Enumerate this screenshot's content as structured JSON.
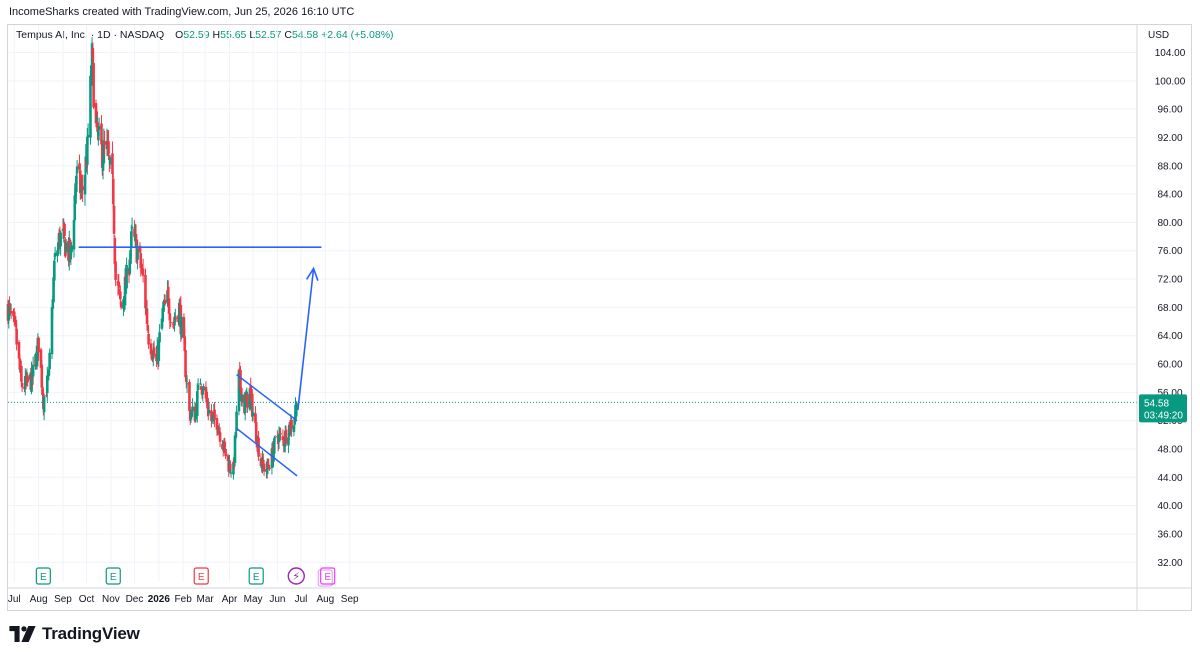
{
  "caption": "IncomeSharks created with TradingView.com, Jun 25, 2026 16:10 UTC",
  "legend": {
    "symbol": "Tempus AI, Inc. · 1D · NASDAQ",
    "open_label": "O",
    "open": "52.59",
    "high_label": "H",
    "high": "55.65",
    "low_label": "L",
    "low": "52.57",
    "close_label": "C",
    "close": "54.58",
    "change": "+2.64 (+5.08%)"
  },
  "currency": "USD",
  "last_price": {
    "price": "54.58",
    "countdown": "03:49:20"
  },
  "brand": {
    "name": "TradingView"
  },
  "colors": {
    "up": "#089981",
    "down": "#f23645",
    "drawing": "#2962ff",
    "price_line": "#089981"
  },
  "chart_data": {
    "type": "candlestick",
    "interval": "1D",
    "x_axis": {
      "ticks": [
        {
          "label": "Jul",
          "date": "2025-07-01"
        },
        {
          "label": "Aug",
          "date": "2025-08-01"
        },
        {
          "label": "Sep",
          "date": "2025-09-01"
        },
        {
          "label": "Oct",
          "date": "2025-10-01"
        },
        {
          "label": "Nov",
          "date": "2025-11-01"
        },
        {
          "label": "Dec",
          "date": "2025-12-01"
        },
        {
          "label": "2026",
          "date": "2026-01-01"
        },
        {
          "label": "Feb",
          "date": "2026-02-01"
        },
        {
          "label": "Mar",
          "date": "2026-03-01"
        },
        {
          "label": "Apr",
          "date": "2026-04-01"
        },
        {
          "label": "May",
          "date": "2026-05-01"
        },
        {
          "label": "Jun",
          "date": "2026-06-01"
        },
        {
          "label": "Jul",
          "date": "2026-07-01"
        },
        {
          "label": "Aug",
          "date": "2026-08-01"
        },
        {
          "label": "Sep",
          "date": "2026-09-01"
        }
      ]
    },
    "y_axis": {
      "range": [
        30,
        107
      ],
      "ticks": [
        "104.00",
        "100.00",
        "96.00",
        "92.00",
        "88.00",
        "84.00",
        "80.00",
        "76.00",
        "72.00",
        "68.00",
        "64.00",
        "60.00",
        "56.00",
        "52.00",
        "48.00",
        "44.00",
        "40.00",
        "36.00",
        "32.00"
      ]
    },
    "close_path": [
      [
        "2025-06-23",
        68
      ],
      [
        "2025-07-03",
        64
      ],
      [
        "2025-07-10",
        57
      ],
      [
        "2025-07-17",
        57
      ],
      [
        "2025-07-24",
        58
      ],
      [
        "2025-08-01",
        63
      ],
      [
        "2025-08-07",
        55
      ],
      [
        "2025-08-14",
        58
      ],
      [
        "2025-08-21",
        74
      ],
      [
        "2025-08-28",
        78
      ],
      [
        "2025-09-04",
        77
      ],
      [
        "2025-09-11",
        75
      ],
      [
        "2025-09-18",
        87
      ],
      [
        "2025-09-25",
        84
      ],
      [
        "2025-10-02",
        90
      ],
      [
        "2025-10-08",
        103
      ],
      [
        "2025-10-13",
        93
      ],
      [
        "2025-10-20",
        90
      ],
      [
        "2025-10-27",
        90
      ],
      [
        "2025-11-04",
        84
      ],
      [
        "2025-11-07",
        72
      ],
      [
        "2025-11-14",
        68
      ],
      [
        "2025-11-21",
        72
      ],
      [
        "2025-11-28",
        78
      ],
      [
        "2025-12-05",
        76
      ],
      [
        "2025-12-12",
        72
      ],
      [
        "2025-12-19",
        64
      ],
      [
        "2025-12-29",
        60
      ],
      [
        "2026-01-06",
        67
      ],
      [
        "2026-01-12",
        69
      ],
      [
        "2026-01-20",
        66
      ],
      [
        "2026-01-27",
        68
      ],
      [
        "2026-02-02",
        62
      ],
      [
        "2026-02-09",
        53
      ],
      [
        "2026-02-16",
        53
      ],
      [
        "2026-02-23",
        58
      ],
      [
        "2026-03-02",
        55
      ],
      [
        "2026-03-09",
        52
      ],
      [
        "2026-03-16",
        52
      ],
      [
        "2026-03-23",
        49
      ],
      [
        "2026-03-30",
        46
      ],
      [
        "2026-04-06",
        45
      ],
      [
        "2026-04-13",
        58
      ],
      [
        "2026-04-20",
        54
      ],
      [
        "2026-04-27",
        56
      ],
      [
        "2026-05-04",
        51
      ],
      [
        "2026-05-11",
        46
      ],
      [
        "2026-05-18",
        45
      ],
      [
        "2026-05-25",
        47
      ],
      [
        "2026-06-01",
        50
      ],
      [
        "2026-06-08",
        49
      ],
      [
        "2026-06-15",
        51
      ],
      [
        "2026-06-22",
        52
      ],
      [
        "2026-06-25",
        54.58
      ]
    ],
    "drawings": {
      "horizontal_line": {
        "start": "2025-09-21",
        "end": "2026-07-27",
        "price": 76.5
      },
      "channel_upper": [
        [
          "2026-04-10",
          58.5
        ],
        [
          "2026-06-26",
          52
        ]
      ],
      "channel_lower": [
        [
          "2026-04-09",
          51
        ],
        [
          "2026-06-26",
          44.2
        ]
      ],
      "arrow": [
        [
          "2026-06-27",
          53.5
        ],
        [
          "2026-07-17",
          73.5
        ]
      ]
    },
    "events": [
      {
        "date": "2025-08-07",
        "type": "earnings",
        "label": "E"
      },
      {
        "date": "2025-11-04",
        "type": "earnings",
        "label": "E"
      },
      {
        "date": "2026-02-24",
        "type": "earnings",
        "label": "E"
      },
      {
        "date": "2026-05-05",
        "type": "earnings",
        "label": "E"
      },
      {
        "date": "2026-06-25",
        "type": "flash",
        "label": "⚡"
      },
      {
        "date": "2026-08-04",
        "type": "earnings-upcoming",
        "label": "E"
      }
    ]
  }
}
